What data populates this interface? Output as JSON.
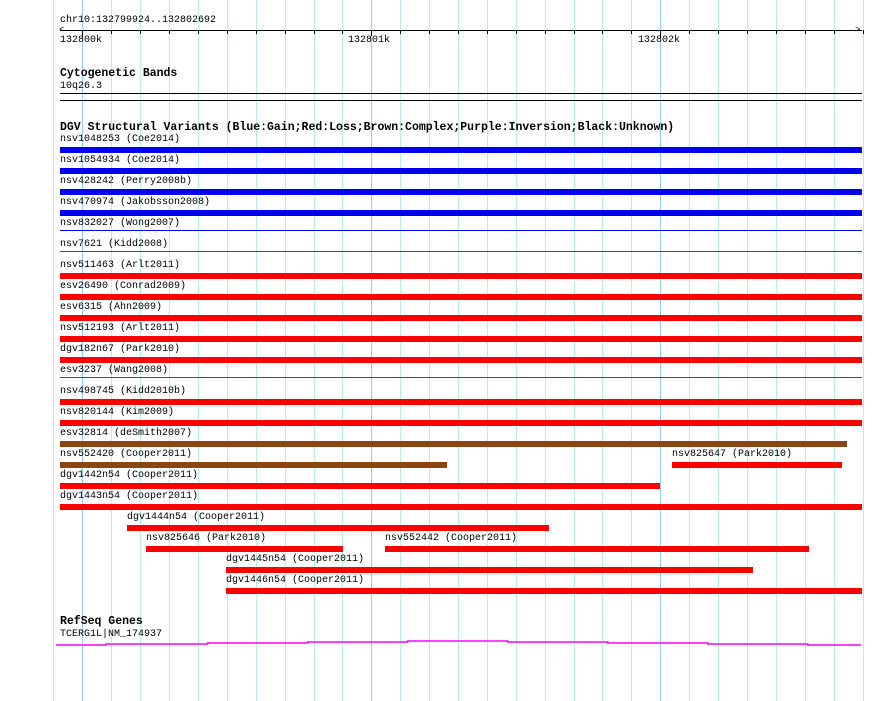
{
  "region": {
    "label": "chr10:132799924..132802692",
    "start": 132799924,
    "end": 132802692
  },
  "ruler": {
    "tick_labels": [
      {
        "label": "132800k",
        "pos": 132800000
      },
      {
        "label": "132801k",
        "pos": 132801000
      },
      {
        "label": "132802k",
        "pos": 132802000
      }
    ]
  },
  "cytobands": {
    "title": "Cytogenetic Bands",
    "band": "10q26.3"
  },
  "dgv": {
    "title": "DGV Structural Variants (Blue:Gain;Red:Loss;Brown:Complex;Purple:Inversion;Black:Unknown)",
    "colors": {
      "gain": "#0000ee",
      "loss": "#ff0000",
      "complex": "#8b4513"
    },
    "rows": [
      [
        {
          "label": "nsv1048253 (Coe2014)",
          "type": "gain",
          "start": 132799924,
          "end": 132802692
        }
      ],
      [
        {
          "label": "nsv1054934 (Coe2014)",
          "type": "gain",
          "start": 132799924,
          "end": 132802692
        }
      ],
      [
        {
          "label": "nsv428242 (Perry2008b)",
          "type": "gain",
          "start": 132799924,
          "end": 132802692
        }
      ],
      [
        {
          "label": "nsv470974 (Jakobsson2008)",
          "type": "gain",
          "start": 132799924,
          "end": 132802692
        }
      ],
      [
        {
          "label": "nsv832027 (Wong2007)",
          "type": "gain",
          "start": 132799924,
          "end": 132802692,
          "thin": true
        }
      ],
      [
        {
          "label": "nsv7621 (Kidd2008)",
          "type": "loss",
          "start": 132799924,
          "end": 132802692,
          "thin": true
        }
      ],
      [
        {
          "label": "nsv511463 (Arlt2011)",
          "type": "loss",
          "start": 132799924,
          "end": 132802692
        }
      ],
      [
        {
          "label": "esv26490 (Conrad2009)",
          "type": "loss",
          "start": 132799924,
          "end": 132802692
        }
      ],
      [
        {
          "label": "esv6315 (Ahn2009)",
          "type": "loss",
          "start": 132799924,
          "end": 132802692
        }
      ],
      [
        {
          "label": "nsv512193 (Arlt2011)",
          "type": "loss",
          "start": 132799924,
          "end": 132802692
        }
      ],
      [
        {
          "label": "dgv182n67 (Park2010)",
          "type": "loss",
          "start": 132799924,
          "end": 132802692
        }
      ],
      [
        {
          "label": "esv3237 (Wang2008)",
          "type": "loss",
          "start": 132799924,
          "end": 132802692,
          "thin": true
        }
      ],
      [
        {
          "label": "nsv498745 (Kidd2010b)",
          "type": "loss",
          "start": 132799924,
          "end": 132802692
        }
      ],
      [
        {
          "label": "nsv820144 (Kim2009)",
          "type": "loss",
          "start": 132799924,
          "end": 132802692
        }
      ],
      [
        {
          "label": "esv32814 (deSmith2007)",
          "type": "complex",
          "start": 132799924,
          "end": 132802639
        }
      ],
      [
        {
          "label": "nsv552420 (Cooper2011)",
          "type": "complex",
          "start": 132799924,
          "end": 132801258
        },
        {
          "label": "nsv825647 (Park2010)",
          "type": "loss",
          "start": 132802037,
          "end": 132802622
        }
      ],
      [
        {
          "label": "dgv1442n54 (Cooper2011)",
          "type": "loss",
          "start": 132799924,
          "end": 132801996
        }
      ],
      [
        {
          "label": "dgv1443n54 (Cooper2011)",
          "type": "loss",
          "start": 132799924,
          "end": 132802692
        }
      ],
      [
        {
          "label": "dgv1444n54 (Cooper2011)",
          "type": "loss",
          "start": 132800155,
          "end": 132801612
        }
      ],
      [
        {
          "label": "nsv825646 (Park2010)",
          "type": "loss",
          "start": 132800220,
          "end": 132800902
        },
        {
          "label": "nsv552442 (Cooper2011)",
          "type": "loss",
          "start": 132801044,
          "end": 132802508
        }
      ],
      [
        {
          "label": "dgv1445n54 (Cooper2011)",
          "type": "loss",
          "start": 132800497,
          "end": 132802317
        }
      ],
      [
        {
          "label": "dgv1446n54 (Cooper2011)",
          "type": "loss",
          "start": 132800497,
          "end": 132802692
        }
      ]
    ]
  },
  "refseq": {
    "title": "RefSeq Genes",
    "gene_label": "TCERG1L|NM_174937",
    "color": "#ff00ff"
  }
}
